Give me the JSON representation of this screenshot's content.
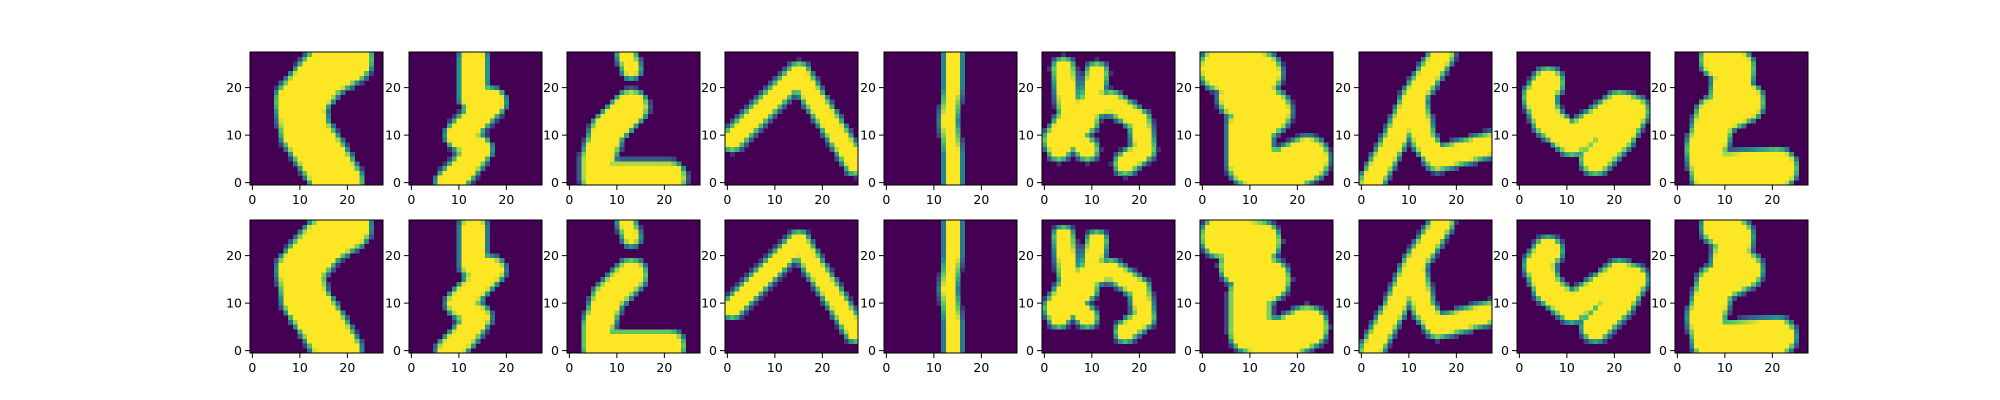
{
  "chart_data": {
    "type": "heatmap",
    "title": "",
    "layout": {
      "rows": 2,
      "cols": 10
    },
    "row_labels": [
      "",
      ""
    ],
    "image_shape": [
      28,
      28
    ],
    "colormap": "viridis",
    "colormap_stops": [
      "#440154",
      "#3b528b",
      "#21918c",
      "#5ec962",
      "#fde725"
    ],
    "xlim": [
      -0.5,
      27.5
    ],
    "ylim": [
      27.5,
      -0.5
    ],
    "x_ticks": [
      0,
      10,
      20
    ],
    "y_ticks": [
      0,
      10,
      20
    ],
    "x_tick_labels": [
      "0",
      "10",
      "20"
    ],
    "y_tick_labels": [
      "0",
      "10",
      "20"
    ],
    "grid": false,
    "glyphs": [
      {
        "name": "ku",
        "strokes": [
          {
            "w": 4.5,
            "pts": [
              [
                20,
                1
              ],
              [
                15,
                4
              ],
              [
                10,
                10
              ],
              [
                11,
                16
              ],
              [
                15,
                22
              ],
              [
                18,
                27
              ]
            ]
          }
        ]
      },
      {
        "name": "su",
        "strokes": [
          {
            "w": 2.2,
            "pts": [
              [
                13,
                1
              ],
              [
                13,
                9
              ]
            ]
          },
          {
            "w": 2.2,
            "pts": [
              [
                13,
                9
              ],
              [
                17,
                10
              ],
              [
                13,
                14
              ],
              [
                10,
                17
              ],
              [
                14,
                20
              ],
              [
                11,
                24
              ],
              [
                8,
                27
              ]
            ]
          }
        ]
      },
      {
        "name": "ri",
        "strokes": [
          {
            "w": 1.3,
            "pts": [
              [
                12,
                0
              ],
              [
                13,
                3
              ]
            ]
          },
          {
            "w": 2.8,
            "pts": [
              [
                13,
                11
              ],
              [
                8,
                16
              ],
              [
                6,
                22
              ],
              [
                6,
                26
              ],
              [
                21,
                26
              ]
            ]
          }
        ]
      },
      {
        "name": "he",
        "strokes": [
          {
            "w": 1.6,
            "pts": [
              [
                1,
                18
              ],
              [
                8,
                11
              ],
              [
                15,
                4
              ],
              [
                18,
                9
              ],
              [
                22,
                15
              ],
              [
                27,
                23
              ]
            ]
          }
        ]
      },
      {
        "name": "tsu",
        "strokes": [
          {
            "w": 1.1,
            "pts": [
              [
                14,
                0
              ],
              [
                14,
                7
              ],
              [
                13,
                14
              ],
              [
                14,
                21
              ],
              [
                14,
                27
              ]
            ]
          }
        ]
      },
      {
        "name": "me",
        "strokes": [
          {
            "w": 1.6,
            "pts": [
              [
                4,
                3
              ],
              [
                5,
                11
              ],
              [
                7,
                18
              ],
              [
                9,
                20
              ]
            ]
          },
          {
            "w": 1.6,
            "pts": [
              [
                11,
                4
              ],
              [
                9,
                14
              ],
              [
                3,
                20
              ],
              [
                2,
                18
              ],
              [
                6,
                12
              ],
              [
                14,
                10
              ],
              [
                20,
                14
              ],
              [
                21,
                20
              ],
              [
                17,
                23
              ]
            ]
          }
        ]
      },
      {
        "name": "ha",
        "strokes": [
          {
            "w": 4.0,
            "pts": [
              [
                4,
                3
              ],
              [
                12,
                4
              ],
              [
                8,
                9
              ],
              [
                14,
                12
              ],
              [
                10,
                15
              ],
              [
                10,
                23
              ],
              [
                16,
                25
              ],
              [
                22,
                22
              ]
            ]
          }
        ]
      },
      {
        "name": "n",
        "strokes": [
          {
            "w": 1.8,
            "pts": [
              [
                17,
                0
              ],
              [
                11,
                9
              ],
              [
                7,
                18
              ],
              [
                2,
                27
              ]
            ]
          },
          {
            "w": 1.8,
            "pts": [
              [
                11,
                9
              ],
              [
                13,
                18
              ],
              [
                16,
                22
              ],
              [
                27,
                19
              ]
            ]
          }
        ]
      },
      {
        "name": "ru",
        "strokes": [
          {
            "w": 2.5,
            "pts": [
              [
                6,
                6
              ],
              [
                4,
                9
              ],
              [
                6,
                14
              ],
              [
                11,
                18
              ],
              [
                17,
                14
              ],
              [
                21,
                11
              ],
              [
                24,
                12
              ],
              [
                21,
                17
              ],
              [
                16,
                22
              ]
            ]
          }
        ]
      },
      {
        "name": "to",
        "strokes": [
          {
            "w": 3.5,
            "pts": [
              [
                9,
                1
              ],
              [
                12,
                3
              ],
              [
                11,
                9
              ],
              [
                14,
                10
              ],
              [
                8,
                13
              ],
              [
                6,
                20
              ],
              [
                7,
                25
              ],
              [
                21,
                24
              ]
            ]
          }
        ]
      }
    ]
  }
}
